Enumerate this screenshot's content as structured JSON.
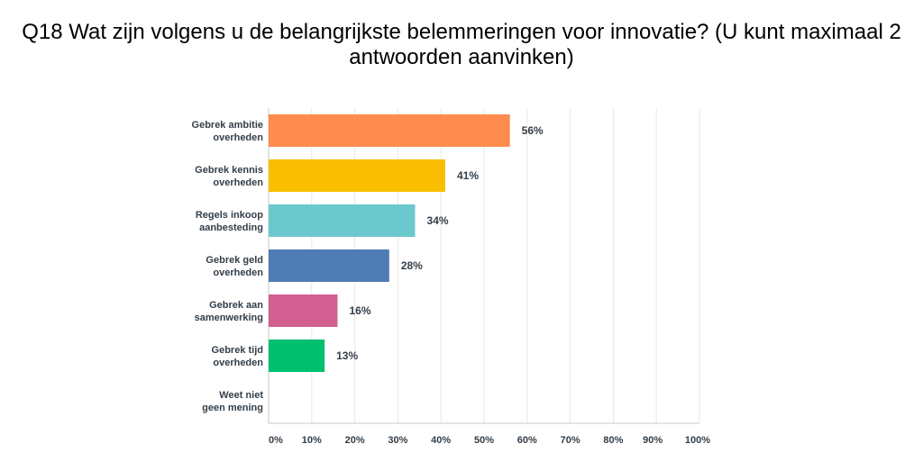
{
  "chart_data": {
    "type": "bar",
    "orientation": "horizontal",
    "title": "Q18 Wat zijn volgens u de belangrijkste belemmeringen voor innovatie? (U kunt maximaal 2 antwoorden aanvinken)",
    "categories": [
      [
        "Gebrek ambitie",
        "overheden"
      ],
      [
        "Gebrek kennis",
        "overheden"
      ],
      [
        "Regels inkoop",
        "aanbesteding"
      ],
      [
        "Gebrek geld",
        "overheden"
      ],
      [
        "Gebrek aan",
        "samenwerking"
      ],
      [
        "Gebrek tijd",
        "overheden"
      ],
      [
        "Weet niet",
        "geen mening"
      ]
    ],
    "values": [
      56,
      41,
      34,
      28,
      16,
      13,
      0
    ],
    "data_labels": [
      "56%",
      "41%",
      "34%",
      "28%",
      "16%",
      "13%",
      ""
    ],
    "colors": [
      "#FF8B4F",
      "#F9BE00",
      "#6BC8CD",
      "#507CB6",
      "#D25F90",
      "#00BF6F",
      "#A2A2A2"
    ],
    "xlim": [
      0,
      100
    ],
    "xticks": [
      "0%",
      "10%",
      "20%",
      "30%",
      "40%",
      "50%",
      "60%",
      "70%",
      "80%",
      "90%",
      "100%"
    ],
    "xlabel": "",
    "ylabel": "",
    "grid": true
  }
}
